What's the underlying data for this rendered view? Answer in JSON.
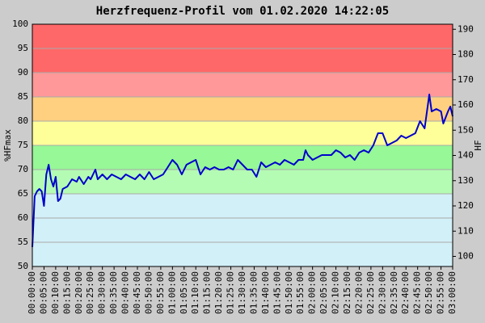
{
  "chart_data": {
    "type": "line",
    "title": "Herzfrequenz-Profil vom 01.02.2020 14:22:05",
    "y_label": "%HFmax",
    "y2_label": "HF",
    "ylim": [
      50,
      100
    ],
    "yticks": [
      50,
      55,
      60,
      65,
      70,
      75,
      80,
      85,
      90,
      95,
      100
    ],
    "y2lim": [
      96,
      192
    ],
    "y2ticks": [
      100,
      110,
      120,
      130,
      140,
      150,
      160,
      170,
      180,
      190
    ],
    "xlim": [
      0,
      180
    ],
    "xticks": [
      {
        "value": 0,
        "label": "00:00:00"
      },
      {
        "value": 5,
        "label": "00:05:00"
      },
      {
        "value": 10,
        "label": "00:10:00"
      },
      {
        "value": 15,
        "label": "00:15:00"
      },
      {
        "value": 20,
        "label": "00:20:00"
      },
      {
        "value": 25,
        "label": "00:25:00"
      },
      {
        "value": 30,
        "label": "00:30:00"
      },
      {
        "value": 35,
        "label": "00:35:00"
      },
      {
        "value": 40,
        "label": "00:40:00"
      },
      {
        "value": 45,
        "label": "00:45:00"
      },
      {
        "value": 50,
        "label": "00:50:00"
      },
      {
        "value": 55,
        "label": "00:55:00"
      },
      {
        "value": 60,
        "label": "01:00:00"
      },
      {
        "value": 65,
        "label": "01:05:00"
      },
      {
        "value": 70,
        "label": "01:10:00"
      },
      {
        "value": 75,
        "label": "01:15:00"
      },
      {
        "value": 80,
        "label": "01:20:00"
      },
      {
        "value": 85,
        "label": "01:25:00"
      },
      {
        "value": 90,
        "label": "01:30:00"
      },
      {
        "value": 95,
        "label": "01:35:00"
      },
      {
        "value": 100,
        "label": "01:40:00"
      },
      {
        "value": 105,
        "label": "01:45:00"
      },
      {
        "value": 110,
        "label": "01:50:00"
      },
      {
        "value": 115,
        "label": "01:55:00"
      },
      {
        "value": 120,
        "label": "02:00:00"
      },
      {
        "value": 125,
        "label": "02:05:00"
      },
      {
        "value": 130,
        "label": "02:10:00"
      },
      {
        "value": 135,
        "label": "02:15:00"
      },
      {
        "value": 140,
        "label": "02:20:00"
      },
      {
        "value": 145,
        "label": "02:25:00"
      },
      {
        "value": 150,
        "label": "02:30:00"
      },
      {
        "value": 155,
        "label": "02:35:00"
      },
      {
        "value": 160,
        "label": "02:40:00"
      },
      {
        "value": 165,
        "label": "02:45:00"
      },
      {
        "value": 170,
        "label": "02:50:00"
      },
      {
        "value": 175,
        "label": "02:55:00"
      },
      {
        "value": 180,
        "label": "03:00:00"
      }
    ],
    "zones": [
      {
        "from": 50,
        "to": 65,
        "color": "#d2f0f8"
      },
      {
        "from": 65,
        "to": 70,
        "color": "#b4fcb4"
      },
      {
        "from": 70,
        "to": 75,
        "color": "#96f896"
      },
      {
        "from": 75,
        "to": 80,
        "color": "#ffff99"
      },
      {
        "from": 80,
        "to": 85,
        "color": "#ffd080"
      },
      {
        "from": 85,
        "to": 90,
        "color": "#ff9898"
      },
      {
        "from": 90,
        "to": 100,
        "color": "#ff6868"
      }
    ],
    "grid": true,
    "x": [
      0,
      1,
      2,
      3,
      4,
      5,
      6,
      7,
      8,
      9,
      10,
      11,
      12,
      13,
      15,
      17,
      19,
      20,
      22,
      24,
      25,
      26,
      27,
      28,
      30,
      32,
      34,
      36,
      38,
      40,
      42,
      44,
      46,
      48,
      50,
      52,
      54,
      56,
      58,
      60,
      62,
      64,
      66,
      68,
      70,
      72,
      74,
      76,
      78,
      80,
      82,
      84,
      86,
      88,
      90,
      92,
      94,
      96,
      98,
      100,
      102,
      104,
      106,
      108,
      110,
      112,
      114,
      116,
      117,
      118,
      120,
      122,
      124,
      126,
      128,
      130,
      132,
      134,
      136,
      138,
      140,
      142,
      144,
      146,
      148,
      150,
      152,
      154,
      156,
      158,
      160,
      162,
      164,
      166,
      168,
      169,
      170,
      171,
      173,
      175,
      176,
      178,
      179,
      180
    ],
    "series": [
      {
        "color": "#0000cc",
        "values": [
          54,
          64.5,
          65.5,
          66,
          65.5,
          62.5,
          69,
          71,
          68,
          66.5,
          68.5,
          63.5,
          64,
          66,
          66.5,
          68,
          67.5,
          68.5,
          67,
          68.5,
          68,
          69,
          70,
          68,
          69,
          68,
          69,
          68.5,
          68,
          69,
          68.5,
          68,
          69,
          68,
          69.5,
          68,
          68.5,
          69,
          70.5,
          72,
          71,
          69,
          71,
          71.5,
          72,
          69,
          70.5,
          70,
          70.5,
          70,
          70,
          70.5,
          70,
          72,
          71,
          70,
          70,
          68.5,
          71.5,
          70.5,
          71,
          71.5,
          71,
          72,
          71.5,
          71,
          72,
          72,
          74,
          73,
          72,
          72.5,
          73,
          73,
          73,
          74,
          73.5,
          72.5,
          73,
          72,
          73.5,
          74,
          73.5,
          75,
          77.5,
          77.5,
          75,
          75.5,
          76,
          77,
          76.5,
          77,
          77.5,
          80,
          78.5,
          82,
          85.5,
          82,
          82.5,
          82,
          79.5,
          82,
          83,
          81
        ]
      }
    ]
  }
}
